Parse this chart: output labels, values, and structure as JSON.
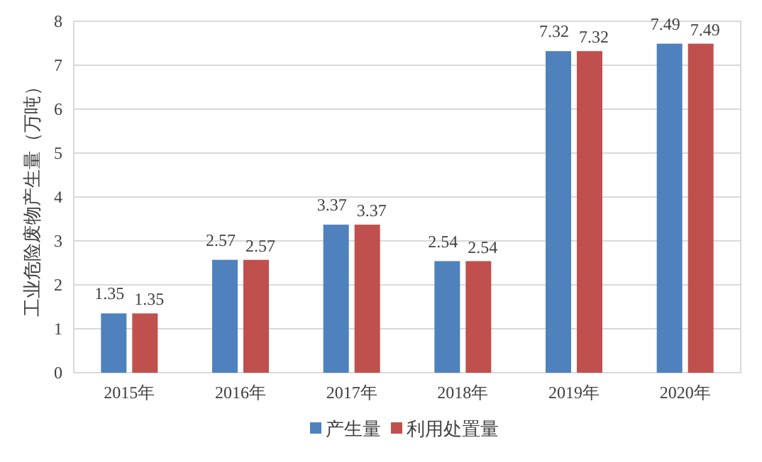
{
  "chart_data": {
    "type": "bar",
    "ylabel": "工业危险废物产生量（万吨）",
    "categories": [
      "2015年",
      "2016年",
      "2017年",
      "2018年",
      "2019年",
      "2020年"
    ],
    "series": [
      {
        "name": "产生量",
        "color": "#4f81bd",
        "values": [
          1.35,
          2.57,
          3.37,
          2.54,
          7.32,
          7.49
        ]
      },
      {
        "name": "利用处置量",
        "color": "#c0504d",
        "values": [
          1.35,
          2.57,
          3.37,
          2.54,
          7.32,
          7.49
        ]
      }
    ],
    "ylim": [
      0,
      8
    ],
    "yticks": [
      0,
      1,
      2,
      3,
      4,
      5,
      6,
      7,
      8
    ],
    "grid": "y",
    "legend": "bottom",
    "data_labels": true
  }
}
